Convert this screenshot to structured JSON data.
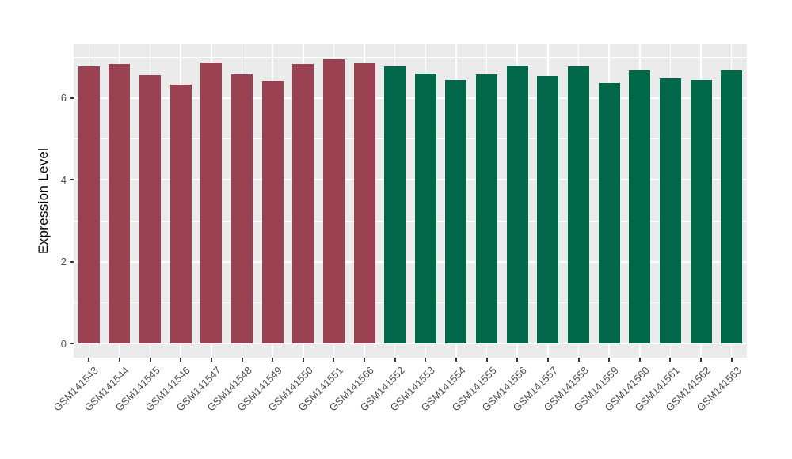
{
  "chart_data": {
    "type": "bar",
    "title": "",
    "xlabel": "",
    "ylabel": "Expression Level",
    "ylim": [
      0,
      7.3
    ],
    "yticks": [
      0,
      2,
      4,
      6
    ],
    "yticks_minor": [
      1,
      3,
      5,
      7
    ],
    "grid": "on",
    "legend": "none",
    "panel_background": "#EBEBEB",
    "grid_color": "#FFFFFF",
    "tick_color": "#333333",
    "axis_text_color": "#4D4D4D",
    "categories": [
      "GSM141543",
      "GSM141544",
      "GSM141545",
      "GSM141546",
      "GSM141547",
      "GSM141548",
      "GSM141549",
      "GSM141550",
      "GSM141551",
      "GSM141566",
      "GSM141552",
      "GSM141553",
      "GSM141554",
      "GSM141555",
      "GSM141556",
      "GSM141557",
      "GSM141558",
      "GSM141559",
      "GSM141560",
      "GSM141561",
      "GSM141562",
      "GSM141563"
    ],
    "values": [
      6.76,
      6.83,
      6.56,
      6.32,
      6.86,
      6.58,
      6.42,
      6.82,
      6.94,
      6.84,
      6.76,
      6.59,
      6.44,
      6.57,
      6.78,
      6.53,
      6.76,
      6.36,
      6.66,
      6.47,
      6.44,
      6.67
    ],
    "bar_colors": [
      "#9B4252",
      "#9B4252",
      "#9B4252",
      "#9B4252",
      "#9B4252",
      "#9B4252",
      "#9B4252",
      "#9B4252",
      "#9B4252",
      "#9B4252",
      "#006748",
      "#006748",
      "#006748",
      "#006748",
      "#006748",
      "#006748",
      "#006748",
      "#006748",
      "#006748",
      "#006748",
      "#006748",
      "#006748"
    ],
    "group_colors": {
      "left_group": "#9B4252",
      "right_group": "#006748"
    }
  }
}
